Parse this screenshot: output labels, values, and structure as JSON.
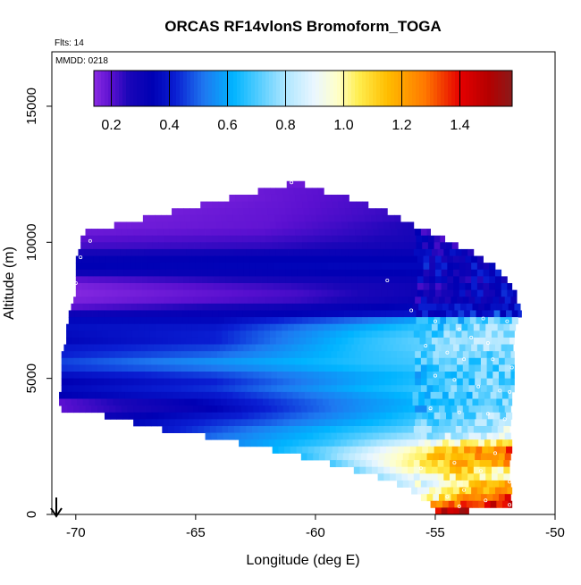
{
  "chart_data": {
    "type": "heatmap",
    "title": "ORCAS RF14vlonS Bromoform_TOGA",
    "flights_note": "Flts: 14",
    "date_note": "MMDD: 0218",
    "xlabel": "Longitude (deg E)",
    "ylabel": "Altitude (m)",
    "xlim": [
      -71,
      -50
    ],
    "ylim": [
      0,
      17000
    ],
    "x_ticks": [
      -70,
      -65,
      -60,
      -55,
      -50
    ],
    "x_tick_labels": [
      "-70",
      "-65",
      "-60",
      "-55",
      "-50"
    ],
    "y_ticks": [
      0,
      5000,
      10000,
      15000
    ],
    "y_tick_labels": [
      "0",
      "5000",
      "10000",
      "15000"
    ],
    "colorbar": {
      "min": 0.14,
      "max": 1.58,
      "ticks": [
        0.2,
        0.4,
        0.6,
        0.8,
        1.0,
        1.2,
        1.4
      ],
      "tick_labels": [
        "0.2",
        "0.4",
        "0.6",
        "0.8",
        "1.0",
        "1.2",
        "1.4"
      ],
      "stops": [
        {
          "v": 0.14,
          "c": "#8a2be2"
        },
        {
          "v": 0.2,
          "c": "#5a10d0"
        },
        {
          "v": 0.26,
          "c": "#1a06b8"
        },
        {
          "v": 0.34,
          "c": "#0000b4"
        },
        {
          "v": 0.42,
          "c": "#0a1ed2"
        },
        {
          "v": 0.52,
          "c": "#1e78f0"
        },
        {
          "v": 0.62,
          "c": "#00b4ff"
        },
        {
          "v": 0.72,
          "c": "#5fd0ff"
        },
        {
          "v": 0.8,
          "c": "#aee6ff"
        },
        {
          "v": 0.9,
          "c": "#ebf7ff"
        },
        {
          "v": 0.98,
          "c": "#ffffc8"
        },
        {
          "v": 1.05,
          "c": "#ffee50"
        },
        {
          "v": 1.15,
          "c": "#ffbe00"
        },
        {
          "v": 1.28,
          "c": "#ff7800"
        },
        {
          "v": 1.4,
          "c": "#e60000"
        },
        {
          "v": 1.5,
          "c": "#b40000"
        },
        {
          "v": 1.58,
          "c": "#8b1a1a"
        }
      ]
    },
    "grid_step_lon": 0.25,
    "grid_step_alt": 250,
    "rows": [
      {
        "alt": 12000,
        "lon_start": -61.2,
        "lon_end": -60.4,
        "v": [
          0.18
        ]
      },
      {
        "alt": 11750,
        "lon_start": -62.4,
        "lon_end": -59.6,
        "v": [
          0.18,
          0.19,
          0.2
        ]
      },
      {
        "alt": 11500,
        "lon_start": -63.6,
        "lon_end": -58.6,
        "v": [
          0.17,
          0.19,
          0.21
        ]
      },
      {
        "alt": 11250,
        "lon_start": -64.8,
        "lon_end": -57.8,
        "v": [
          0.17,
          0.19,
          0.22
        ]
      },
      {
        "alt": 11000,
        "lon_start": -66.0,
        "lon_end": -57.0,
        "v": [
          0.17,
          0.19,
          0.23
        ]
      },
      {
        "alt": 10750,
        "lon_start": -67.2,
        "lon_end": -56.4,
        "v": [
          0.17,
          0.19,
          0.24
        ]
      },
      {
        "alt": 10500,
        "lon_start": -68.4,
        "lon_end": -55.8,
        "v": [
          0.17,
          0.19,
          0.26
        ]
      },
      {
        "alt": 10250,
        "lon_start": -69.6,
        "lon_end": -55.2,
        "v": [
          0.18,
          0.2,
          0.27
        ]
      },
      {
        "alt": 10000,
        "lon_start": -69.8,
        "lon_end": -54.6,
        "v": [
          0.2,
          0.22,
          0.28
        ]
      },
      {
        "alt": 9750,
        "lon_start": -69.8,
        "lon_end": -54.0,
        "v": [
          0.22,
          0.24,
          0.3
        ]
      },
      {
        "alt": 9500,
        "lon_start": -69.9,
        "lon_end": -53.4,
        "v": [
          0.27,
          0.3,
          0.32
        ]
      },
      {
        "alt": 9250,
        "lon_start": -70.0,
        "lon_end": -52.9,
        "v": [
          0.33,
          0.34,
          0.34
        ]
      },
      {
        "alt": 9000,
        "lon_start": -70.0,
        "lon_end": -52.5,
        "v": [
          0.34,
          0.35,
          0.36
        ]
      },
      {
        "alt": 8750,
        "lon_start": -70.0,
        "lon_end": -52.2,
        "v": [
          0.3,
          0.33,
          0.35
        ]
      },
      {
        "alt": 8500,
        "lon_start": -70.0,
        "lon_end": -52.0,
        "v": [
          0.2,
          0.28,
          0.34
        ]
      },
      {
        "alt": 8250,
        "lon_start": -70.0,
        "lon_end": -51.8,
        "v": [
          0.16,
          0.24,
          0.34
        ]
      },
      {
        "alt": 8000,
        "lon_start": -70.0,
        "lon_end": -51.6,
        "v": [
          0.15,
          0.22,
          0.36
        ]
      },
      {
        "alt": 7750,
        "lon_start": -70.1,
        "lon_end": -51.5,
        "v": [
          0.16,
          0.23,
          0.38
        ]
      },
      {
        "alt": 7500,
        "lon_start": -70.2,
        "lon_end": -51.4,
        "v": [
          0.2,
          0.3,
          0.4
        ]
      },
      {
        "alt": 7250,
        "lon_start": -70.3,
        "lon_end": -51.4,
        "v": [
          0.3,
          0.34,
          0.44
        ]
      },
      {
        "alt": 7000,
        "lon_start": -70.3,
        "lon_end": -51.5,
        "v": [
          0.36,
          0.36,
          0.52,
          0.74
        ]
      },
      {
        "alt": 6750,
        "lon_start": -70.4,
        "lon_end": -51.6,
        "v": [
          0.38,
          0.4,
          0.6,
          0.78
        ]
      },
      {
        "alt": 6500,
        "lon_start": -70.4,
        "lon_end": -51.7,
        "v": [
          0.37,
          0.42,
          0.64,
          0.8
        ]
      },
      {
        "alt": 6250,
        "lon_start": -70.4,
        "lon_end": -51.7,
        "v": [
          0.36,
          0.42,
          0.66,
          0.82
        ]
      },
      {
        "alt": 6000,
        "lon_start": -70.5,
        "lon_end": -51.7,
        "v": [
          0.4,
          0.46,
          0.66,
          0.8
        ]
      },
      {
        "alt": 5750,
        "lon_start": -70.6,
        "lon_end": -51.7,
        "v": [
          0.42,
          0.5,
          0.66,
          0.76
        ]
      },
      {
        "alt": 5500,
        "lon_start": -70.6,
        "lon_end": -51.7,
        "v": [
          0.46,
          0.56,
          0.66,
          0.74
        ]
      },
      {
        "alt": 5250,
        "lon_start": -70.6,
        "lon_end": -51.7,
        "v": [
          0.44,
          0.52,
          0.64,
          0.72
        ]
      },
      {
        "alt": 5000,
        "lon_start": -70.6,
        "lon_end": -51.7,
        "v": [
          0.38,
          0.46,
          0.6,
          0.72
        ]
      },
      {
        "alt": 4750,
        "lon_start": -70.6,
        "lon_end": -51.7,
        "v": [
          0.34,
          0.42,
          0.6,
          0.74
        ]
      },
      {
        "alt": 4500,
        "lon_start": -70.6,
        "lon_end": -51.7,
        "v": [
          0.36,
          0.44,
          0.62,
          0.76
        ]
      },
      {
        "alt": 4250,
        "lon_start": -70.7,
        "lon_end": -51.8,
        "v": [
          0.34,
          0.4,
          0.58,
          0.74
        ]
      },
      {
        "alt": 4000,
        "lon_start": -70.7,
        "lon_end": -51.8,
        "v": [
          0.2,
          0.36,
          0.56,
          0.72
        ]
      },
      {
        "alt": 3750,
        "lon_start": -70.6,
        "lon_end": -51.8,
        "v": [
          0.2,
          0.34,
          0.56,
          0.74
        ]
      },
      {
        "alt": 3500,
        "lon_start": -68.8,
        "lon_end": -51.8,
        "v": [
          0.3,
          0.42,
          0.6,
          0.8
        ]
      },
      {
        "alt": 3250,
        "lon_start": -67.6,
        "lon_end": -51.8,
        "v": [
          0.36,
          0.48,
          0.64,
          0.82
        ]
      },
      {
        "alt": 3000,
        "lon_start": -66.4,
        "lon_end": -51.8,
        "v": [
          0.4,
          0.56,
          0.7,
          0.86
        ]
      },
      {
        "alt": 2750,
        "lon_start": -64.6,
        "lon_end": -51.8,
        "v": [
          0.5,
          0.62,
          0.78,
          0.9
        ]
      },
      {
        "alt": 2500,
        "lon_start": -63.2,
        "lon_end": -51.8,
        "v": [
          0.56,
          0.68,
          0.9,
          1.1
        ]
      },
      {
        "alt": 2250,
        "lon_start": -61.8,
        "lon_end": -51.8,
        "v": [
          0.62,
          0.8,
          1.05,
          1.3
        ]
      },
      {
        "alt": 2000,
        "lon_start": -60.6,
        "lon_end": -51.8,
        "v": [
          0.66,
          0.9,
          1.1,
          1.25
        ]
      },
      {
        "alt": 1750,
        "lon_start": -59.4,
        "lon_end": -51.8,
        "v": [
          0.7,
          0.96,
          1.15,
          1.2
        ]
      },
      {
        "alt": 1500,
        "lon_start": -58.4,
        "lon_end": -51.8,
        "v": [
          0.74,
          0.98,
          1.12,
          1.0
        ]
      },
      {
        "alt": 1250,
        "lon_start": -57.4,
        "lon_end": -51.8,
        "v": [
          0.78,
          0.96,
          1.05,
          0.92
        ]
      },
      {
        "alt": 1000,
        "lon_start": -56.6,
        "lon_end": -51.8,
        "v": [
          0.82,
          0.96,
          1.1,
          1.2
        ]
      },
      {
        "alt": 750,
        "lon_start": -56.0,
        "lon_end": -51.8,
        "v": [
          0.86,
          1.05,
          1.18,
          1.28
        ]
      },
      {
        "alt": 500,
        "lon_start": -55.6,
        "lon_end": -51.8,
        "v": [
          0.92,
          1.12,
          1.25,
          1.35
        ]
      },
      {
        "alt": 250,
        "lon_start": -55.2,
        "lon_end": -51.8,
        "v": [
          1.2,
          1.3,
          1.4,
          1.45
        ]
      },
      {
        "alt": 0,
        "lon_start": -55.0,
        "lon_end": -53.6,
        "v": [
          1.45,
          1.5,
          1.55
        ]
      }
    ],
    "samples": [
      [
        -61.0,
        12200
      ],
      [
        -69.4,
        10050
      ],
      [
        -69.8,
        9450
      ],
      [
        -70.0,
        8500
      ],
      [
        -70.4,
        7600
      ],
      [
        -70.6,
        6700
      ],
      [
        -70.8,
        5750
      ],
      [
        -70.7,
        4900
      ],
      [
        -70.7,
        3900
      ],
      [
        -57.0,
        8600
      ],
      [
        -56.0,
        7500
      ],
      [
        -55.0,
        7100
      ],
      [
        -54.0,
        6800
      ],
      [
        -53.0,
        7200
      ],
      [
        -52.0,
        7100
      ],
      [
        -53.5,
        6500
      ],
      [
        -52.8,
        6300
      ],
      [
        -55.4,
        6200
      ],
      [
        -54.5,
        5950
      ],
      [
        -53.8,
        5700
      ],
      [
        -52.6,
        5700
      ],
      [
        -51.8,
        5400
      ],
      [
        -55.0,
        5100
      ],
      [
        -54.2,
        4950
      ],
      [
        -53.2,
        4700
      ],
      [
        -52.3,
        4550
      ],
      [
        -51.9,
        4500
      ],
      [
        -55.2,
        3900
      ],
      [
        -54.0,
        3750
      ],
      [
        -52.8,
        3700
      ],
      [
        -52.1,
        3500
      ],
      [
        -54.2,
        1900
      ],
      [
        -55.6,
        1700
      ],
      [
        -53.1,
        1600
      ],
      [
        -51.9,
        1200
      ],
      [
        -54.5,
        650
      ],
      [
        -54.0,
        300
      ],
      [
        -52.9,
        520
      ],
      [
        -51.9,
        350
      ],
      [
        -55.2,
        150
      ],
      [
        -53.8,
        900
      ],
      [
        -52.5,
        2250
      ]
    ]
  }
}
